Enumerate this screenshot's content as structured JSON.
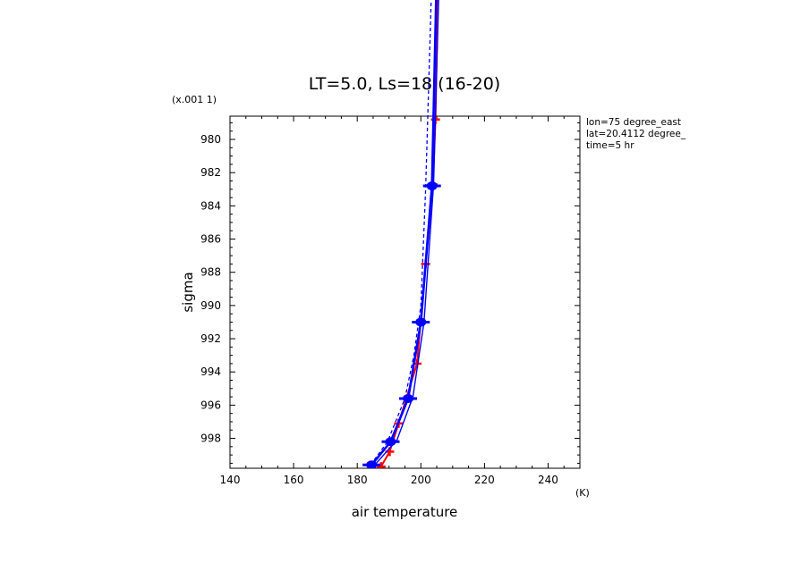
{
  "chart_data": {
    "type": "line",
    "title": "LT=5.0, Ls=18 (16-20)",
    "xlabel": "air temperature",
    "ylabel": "sigma",
    "x_unit": "(K)",
    "y_unit": "(x.001 1)",
    "xlim": [
      140,
      250
    ],
    "ylim": [
      997.8,
      978.6
    ],
    "y_range_per_mille": [
      978.6,
      999.8
    ],
    "x_ticks": [
      140,
      160,
      180,
      200,
      220,
      240
    ],
    "y_ticks": [
      980,
      982,
      984,
      986,
      988,
      990,
      992,
      994,
      996,
      998
    ],
    "x_tick_labels": [
      "140",
      "160",
      "180",
      "200",
      "220",
      "240"
    ],
    "y_tick_labels": [
      "980",
      "982",
      "984",
      "986",
      "988",
      "990",
      "992",
      "994",
      "996",
      "998"
    ],
    "info": [
      "lon=75 degree_east",
      "lat=20.4112 degree_",
      "time=5 hr"
    ],
    "colors": {
      "blue": "#0000ff",
      "red": "#ff0000",
      "axis": "#000000"
    },
    "series": [
      {
        "color": "#ff0000",
        "style": "solid-markers",
        "points": [
          [
            187.5,
            999.7
          ],
          [
            190.2,
            998.8
          ],
          [
            193.0,
            997.1
          ],
          [
            198.8,
            993.5
          ],
          [
            201.5,
            987.5
          ],
          [
            203.8,
            982.7
          ],
          [
            204.6,
            978.8
          ],
          [
            205.5,
            970.0
          ]
        ]
      },
      {
        "color": "#0000ff",
        "style": "solid-thick-markers",
        "points": [
          [
            184.5,
            999.6
          ],
          [
            190.5,
            998.2
          ],
          [
            196.0,
            995.6
          ],
          [
            200.0,
            991.0
          ],
          [
            203.5,
            982.8
          ],
          [
            205.0,
            970.0
          ]
        ]
      },
      {
        "color": "#0000ff",
        "style": "solid-thin",
        "points": [
          [
            185.5,
            999.6
          ],
          [
            192.5,
            998.1
          ],
          [
            197.5,
            995.5
          ],
          [
            201.0,
            991.0
          ],
          [
            204.0,
            982.7
          ],
          [
            205.8,
            970.0
          ]
        ]
      },
      {
        "color": "#0000ff",
        "style": "dashed",
        "points": [
          [
            184.2,
            999.6
          ],
          [
            189.5,
            998.2
          ],
          [
            195.0,
            995.6
          ],
          [
            197.8,
            993.0
          ],
          [
            200.0,
            990.0
          ],
          [
            201.5,
            983.0
          ],
          [
            203.5,
            970.0
          ]
        ]
      }
    ]
  }
}
